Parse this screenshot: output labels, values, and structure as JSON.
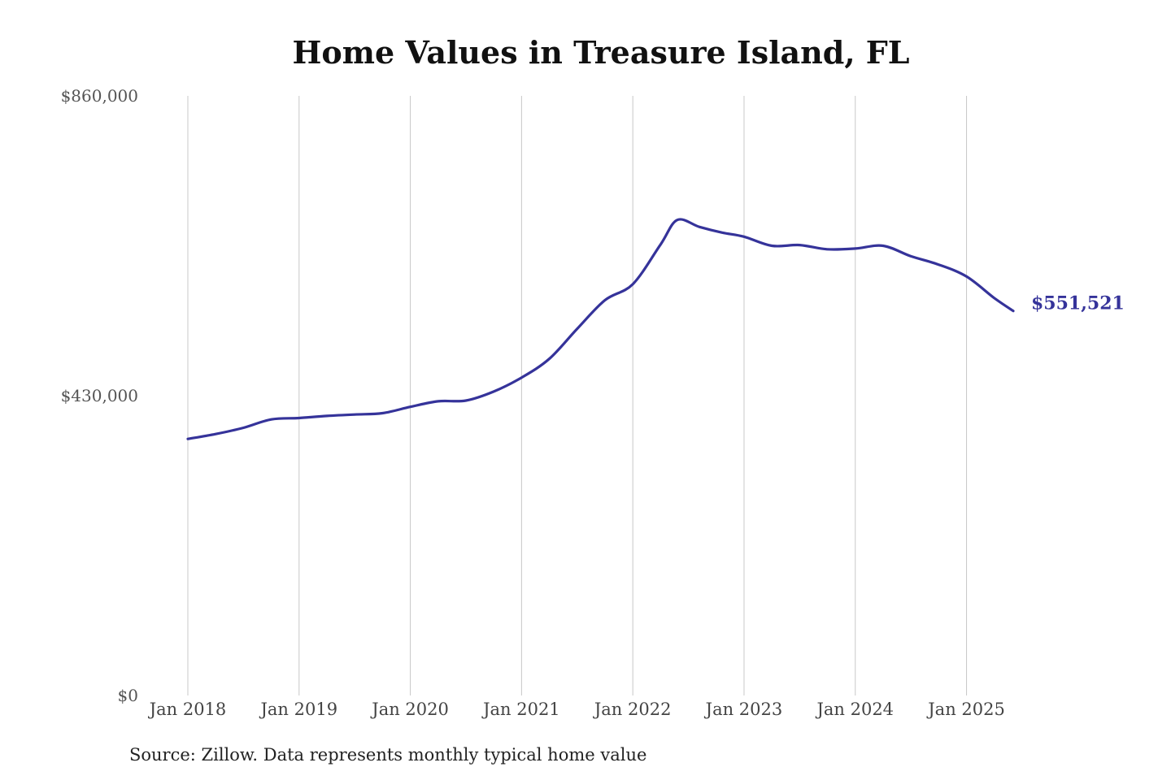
{
  "chart_data": {
    "type": "line",
    "title": "Home Values in Treasure Island, FL",
    "source": "Source: Zillow. Data represents monthly typical home value",
    "xlabel": "",
    "ylabel": "",
    "ylim": [
      0,
      860000
    ],
    "y_ticks": [
      {
        "value": 0,
        "label": "$0"
      },
      {
        "value": 430000,
        "label": "$430,000"
      },
      {
        "value": 860000,
        "label": "$860,000"
      }
    ],
    "x_ticks": [
      {
        "value": 2018,
        "label": "Jan 2018"
      },
      {
        "value": 2019,
        "label": "Jan 2019"
      },
      {
        "value": 2020,
        "label": "Jan 2020"
      },
      {
        "value": 2021,
        "label": "Jan 2021"
      },
      {
        "value": 2022,
        "label": "Jan 2022"
      },
      {
        "value": 2023,
        "label": "Jan 2023"
      },
      {
        "value": 2024,
        "label": "Jan 2024"
      },
      {
        "value": 2025,
        "label": "Jan 2025"
      }
    ],
    "xlim": [
      2018,
      2025.42
    ],
    "grid": {
      "vertical": true,
      "horizontal": false
    },
    "series": [
      {
        "name": "",
        "color": "#35339a",
        "end_label": "$551,521",
        "points": [
          [
            2018.0,
            368000
          ],
          [
            2018.25,
            375000
          ],
          [
            2018.5,
            384000
          ],
          [
            2018.75,
            396000
          ],
          [
            2019.0,
            398000
          ],
          [
            2019.25,
            401000
          ],
          [
            2019.5,
            403000
          ],
          [
            2019.75,
            405000
          ],
          [
            2020.0,
            414000
          ],
          [
            2020.25,
            422000
          ],
          [
            2020.5,
            423000
          ],
          [
            2020.75,
            436000
          ],
          [
            2021.0,
            456000
          ],
          [
            2021.25,
            483000
          ],
          [
            2021.5,
            526000
          ],
          [
            2021.75,
            567000
          ],
          [
            2022.0,
            590000
          ],
          [
            2022.25,
            647000
          ],
          [
            2022.4,
            682000
          ],
          [
            2022.6,
            672000
          ],
          [
            2022.8,
            664000
          ],
          [
            2023.0,
            658000
          ],
          [
            2023.25,
            645000
          ],
          [
            2023.5,
            646000
          ],
          [
            2023.75,
            640000
          ],
          [
            2024.0,
            641000
          ],
          [
            2024.25,
            645000
          ],
          [
            2024.5,
            630000
          ],
          [
            2024.75,
            618000
          ],
          [
            2025.0,
            601000
          ],
          [
            2025.25,
            570000
          ],
          [
            2025.42,
            551521
          ]
        ]
      }
    ]
  }
}
